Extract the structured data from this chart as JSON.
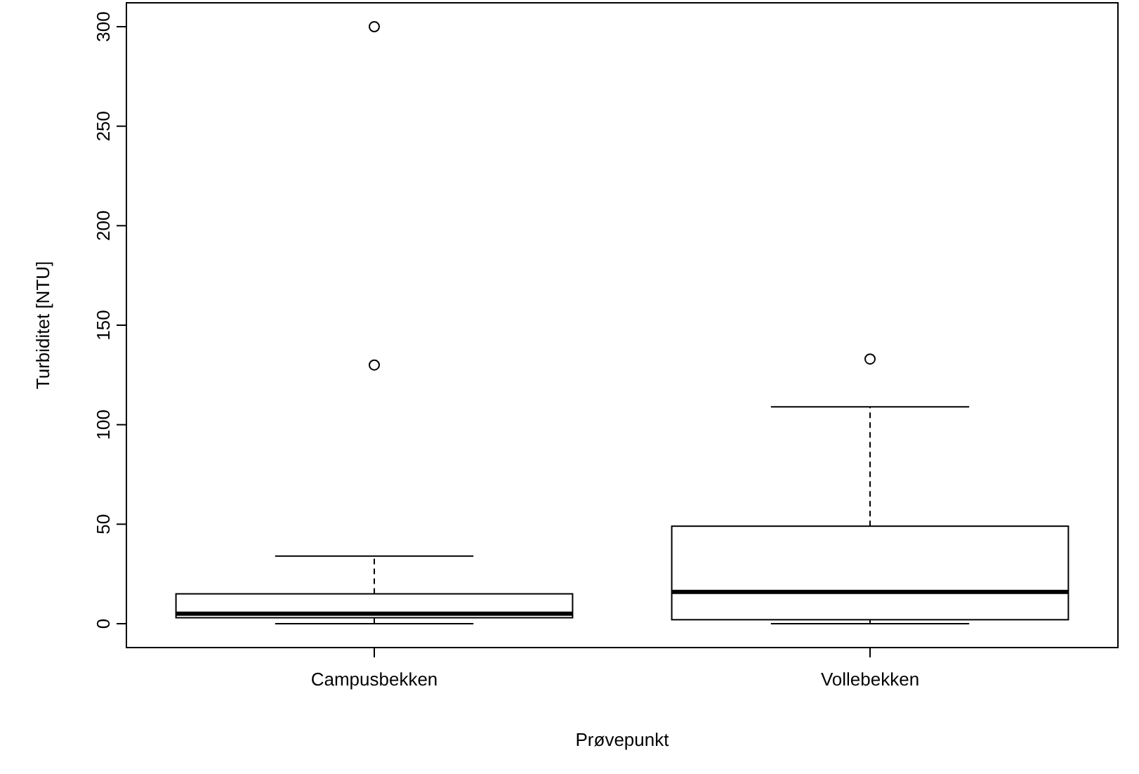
{
  "chart_data": {
    "type": "box",
    "xlabel": "Prøvepunkt",
    "ylabel": "Turbiditet [NTU]",
    "categories": [
      "Campusbekken",
      "Vollebekken"
    ],
    "boxes": [
      {
        "low": 0,
        "q1": 3,
        "median": 5,
        "q3": 15,
        "high": 34,
        "outliers": [
          130,
          300
        ]
      },
      {
        "low": 0,
        "q1": 2,
        "median": 16,
        "q3": 49,
        "high": 109,
        "outliers": [
          133
        ]
      }
    ],
    "ylim": [
      -12,
      312
    ],
    "yticks": [
      0,
      50,
      100,
      150,
      200,
      250,
      300
    ],
    "grid": false
  }
}
